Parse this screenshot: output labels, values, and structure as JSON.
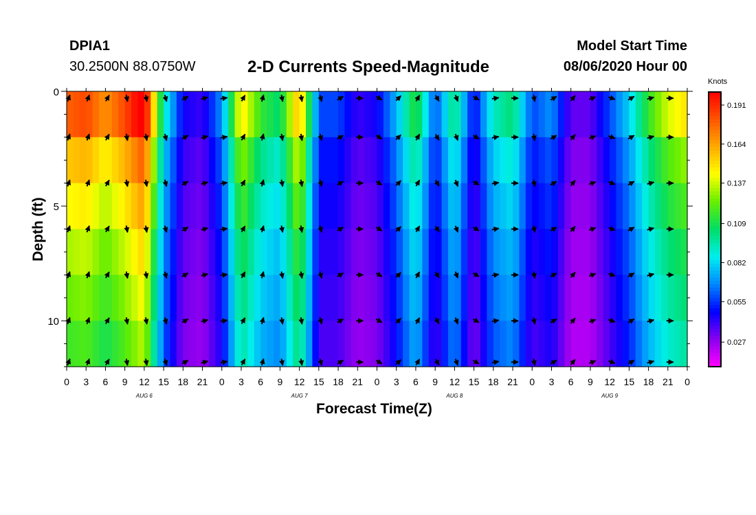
{
  "header": {
    "station": "DPIA1",
    "coordinates": "30.2500N 88.0750W",
    "title": "2-D Currents Speed-Magnitude",
    "model_start_label": "Model Start Time",
    "model_start_value": "08/06/2020 Hour 00"
  },
  "chart_data": {
    "type": "heatmap",
    "title": "2-D Currents Speed-Magnitude",
    "xlabel": "Forecast Time(Z)",
    "ylabel": "Depth (ft)",
    "x_ticks": [
      "0",
      "3",
      "6",
      "9",
      "12",
      "15",
      "18",
      "21",
      "0",
      "3",
      "6",
      "9",
      "12",
      "15",
      "18",
      "21",
      "0",
      "3",
      "6",
      "9",
      "12",
      "15",
      "18",
      "21",
      "0",
      "3",
      "6",
      "9",
      "12",
      "15",
      "18",
      "21",
      "0"
    ],
    "day_labels": [
      "AUG 6",
      "AUG 7",
      "AUG 8",
      "AUG 9"
    ],
    "xlim_hours": [
      0,
      96
    ],
    "y_ticks": [
      0,
      5,
      10
    ],
    "ylim": [
      0,
      12
    ],
    "colorbar": {
      "units": "Knots",
      "ticks": [
        "0.191",
        "0.164",
        "0.137",
        "0.109",
        "0.082",
        "0.055",
        "0.027"
      ],
      "range": [
        0.01,
        0.2
      ],
      "colors": [
        "#ff00ff",
        "#8800ee",
        "#0000ff",
        "#0088ff",
        "#00eeee",
        "#00dd66",
        "#66ee00",
        "#ffff00",
        "#ffaa00",
        "#ff5500",
        "#ff0000"
      ]
    },
    "hours": [
      0,
      3,
      6,
      9,
      12,
      15,
      18,
      21,
      24,
      27,
      30,
      33,
      36,
      39,
      42,
      45,
      48,
      51,
      54,
      57,
      60,
      63,
      66,
      69,
      72,
      75,
      78,
      81,
      84,
      87,
      90,
      93,
      96
    ],
    "speed_profile": [
      0.155,
      0.16,
      0.145,
      0.16,
      0.18,
      0.08,
      0.04,
      0.035,
      0.06,
      0.13,
      0.1,
      0.09,
      0.14,
      0.05,
      0.05,
      0.035,
      0.04,
      0.065,
      0.1,
      0.05,
      0.09,
      0.04,
      0.08,
      0.09,
      0.05,
      0.06,
      0.03,
      0.03,
      0.05,
      0.07,
      0.1,
      0.12,
      0.13
    ],
    "depth_factors": [
      1.15,
      1.0,
      0.92,
      0.85,
      0.8,
      0.75
    ],
    "arrow_depths": [
      0.3,
      2.0,
      4.0,
      6.0,
      8.0,
      10.0,
      11.8
    ],
    "arrow_directions_deg": [
      20,
      20,
      30,
      170,
      170,
      165,
      60,
      75,
      80,
      30,
      15,
      170,
      170,
      165,
      60,
      90,
      120,
      45,
      30,
      150,
      160,
      120,
      80,
      90,
      170,
      60,
      40,
      70,
      110,
      60,
      75,
      90,
      120
    ]
  }
}
